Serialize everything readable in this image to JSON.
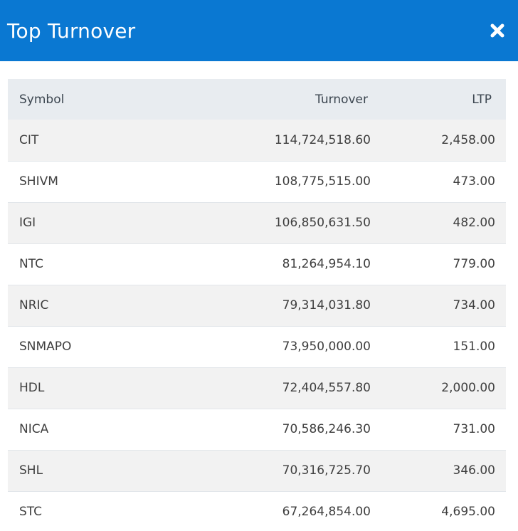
{
  "header": {
    "title": "Top Turnover",
    "close_icon": "close-icon"
  },
  "colors": {
    "header_bg": "#0a78d2",
    "header_text": "#ffffff",
    "table_header_bg": "#e8ecf0",
    "row_alt_bg": "#f2f2f2"
  },
  "table": {
    "columns": [
      "Symbol",
      "Turnover",
      "LTP"
    ],
    "rows": [
      {
        "symbol": "CIT",
        "turnover": "114,724,518.60",
        "ltp": "2,458.00"
      },
      {
        "symbol": "SHIVM",
        "turnover": "108,775,515.00",
        "ltp": "473.00"
      },
      {
        "symbol": "IGI",
        "turnover": "106,850,631.50",
        "ltp": "482.00"
      },
      {
        "symbol": "NTC",
        "turnover": "81,264,954.10",
        "ltp": "779.00"
      },
      {
        "symbol": "NRIC",
        "turnover": "79,314,031.80",
        "ltp": "734.00"
      },
      {
        "symbol": "SNMAPO",
        "turnover": "73,950,000.00",
        "ltp": "151.00"
      },
      {
        "symbol": "HDL",
        "turnover": "72,404,557.80",
        "ltp": "2,000.00"
      },
      {
        "symbol": "NICA",
        "turnover": "70,586,246.30",
        "ltp": "731.00"
      },
      {
        "symbol": "SHL",
        "turnover": "70,316,725.70",
        "ltp": "346.00"
      },
      {
        "symbol": "STC",
        "turnover": "67,264,854.00",
        "ltp": "4,695.00"
      }
    ]
  }
}
